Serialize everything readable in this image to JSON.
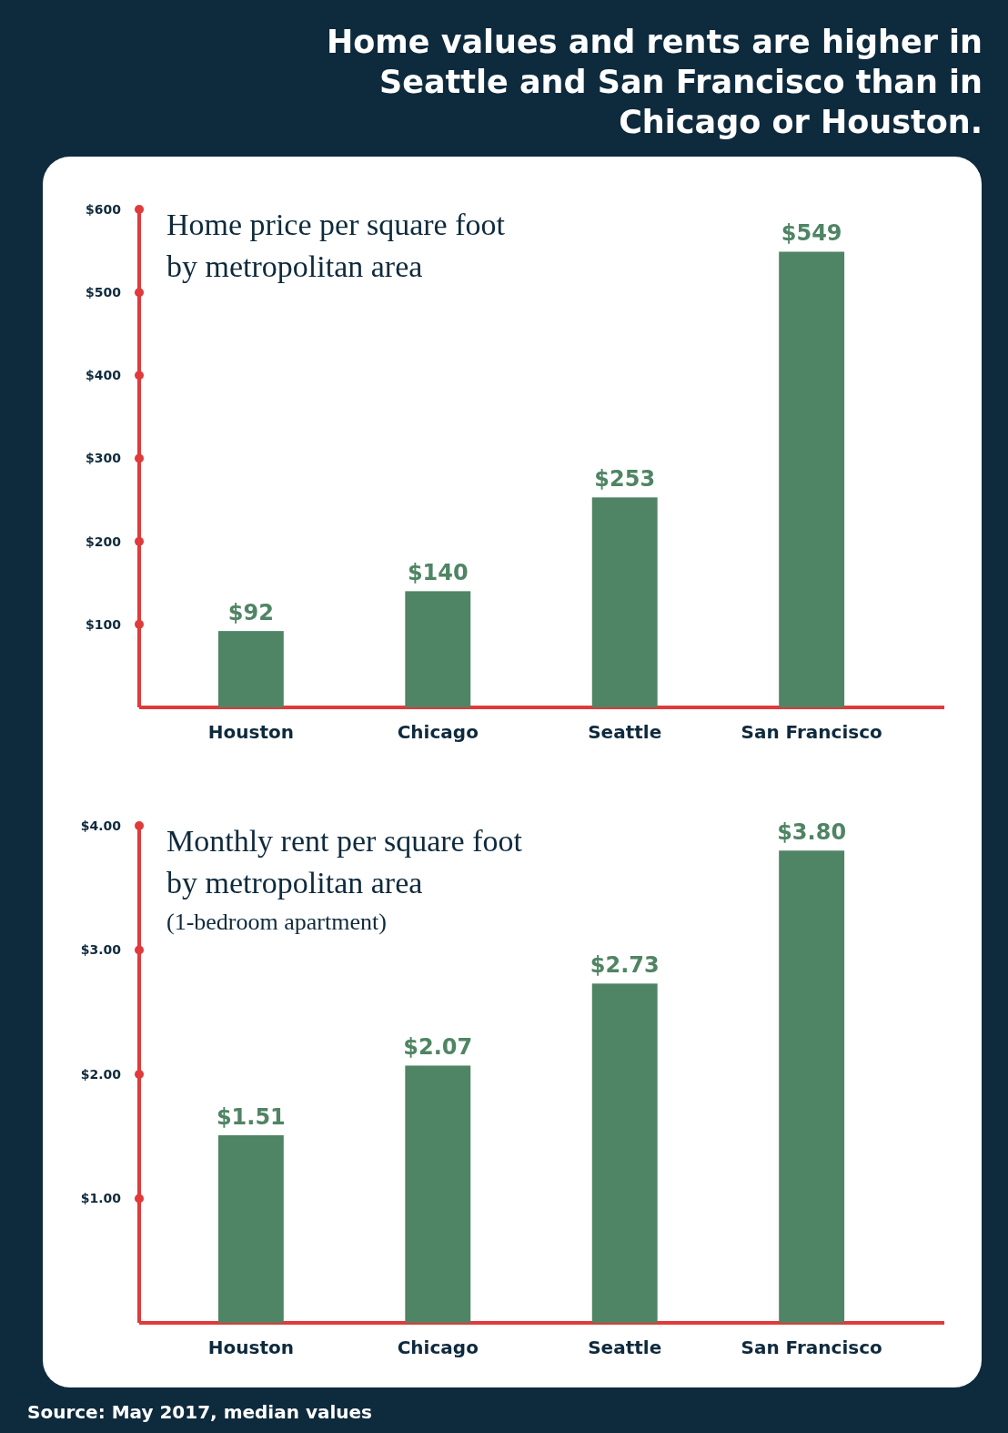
{
  "chart_data": [
    {
      "type": "bar",
      "title": "Home values and rents are higher in Seattle and San Francisco than in Chicago or Houston.",
      "subtitle": "Home price per square foot by metropolitan area",
      "categories": [
        "Houston",
        "Chicago",
        "Seattle",
        "San Francisco"
      ],
      "values": [
        92,
        140,
        253,
        549
      ],
      "color": "#4f8464",
      "value_labels": [
        "$92",
        "$140",
        "$253",
        "$549"
      ],
      "ylim": [
        0,
        600
      ],
      "yticks": [
        {
          "value": 100,
          "label": "$100"
        },
        {
          "value": 200,
          "label": "$200"
        },
        {
          "value": 300,
          "label": "$300"
        },
        {
          "value": 400,
          "label": "$400"
        },
        {
          "value": 500,
          "label": "$500"
        },
        {
          "value": 600,
          "label": "$600"
        }
      ]
    },
    {
      "type": "bar",
      "title": "Monthly rent per square foot by metropolitan area",
      "subtitle": "(1-bedroom apartment)",
      "categories": [
        "Houston",
        "Chicago",
        "Seattle",
        "San Francisco"
      ],
      "values": [
        1.51,
        2.07,
        2.73,
        3.8
      ],
      "color": "#4f8464",
      "value_labels": [
        "$1.51",
        "$2.07",
        "$2.73",
        "$3.80"
      ],
      "ylim": [
        0,
        4
      ],
      "yticks": [
        {
          "value": 1,
          "label": "$1.00"
        },
        {
          "value": 2,
          "label": "$2.00"
        },
        {
          "value": 3,
          "label": "$3.00"
        },
        {
          "value": 4,
          "label": "$4.00"
        }
      ],
      "annotations": [
        "Source: May 2017, median values"
      ]
    }
  ]
}
